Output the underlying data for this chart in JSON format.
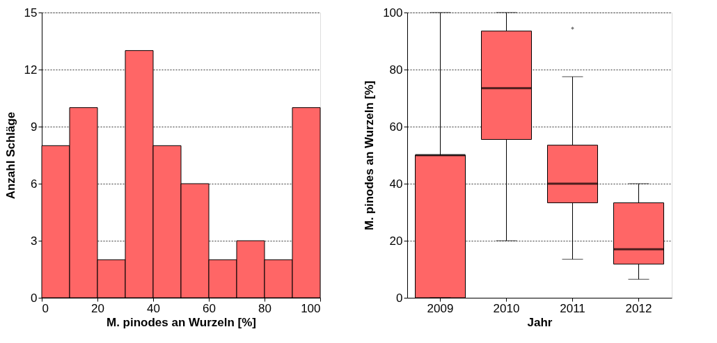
{
  "chart_data": [
    {
      "type": "histogram",
      "bins": [
        0,
        10,
        20,
        30,
        40,
        50,
        60,
        70,
        80,
        90,
        100
      ],
      "values": [
        8,
        10,
        2,
        13,
        8,
        6,
        2,
        3,
        2,
        10
      ],
      "color": "#ff6666",
      "xlabel": "M. pinodes an Wurzeln [%]",
      "ylabel": "Anzahl Schläge",
      "xlim": [
        0,
        100
      ],
      "xticks": [
        0,
        20,
        40,
        60,
        80,
        100
      ],
      "ylim": [
        0,
        15
      ],
      "yticks": [
        0,
        3,
        6,
        9,
        12,
        15
      ],
      "grid": "y"
    },
    {
      "type": "box",
      "categories": [
        "2009",
        "2010",
        "2011",
        "2012"
      ],
      "color": "#ff6666",
      "xlabel": "Jahr",
      "ylabel": "M. pinodes an Wurzeln [%]",
      "ylim": [
        0,
        100
      ],
      "yticks": [
        0,
        20,
        40,
        60,
        80,
        100
      ],
      "grid": "y",
      "boxes": [
        {
          "low": 0,
          "q1": 0,
          "median": 50,
          "q3": 50,
          "high": 100
        },
        {
          "low": 20,
          "q1": 55.5,
          "median": 73.5,
          "q3": 93.5,
          "high": 100
        },
        {
          "low": 13.5,
          "q1": 33.3,
          "median": 40,
          "q3": 53.5,
          "high": 77.5,
          "outliers": [
            94.5
          ]
        },
        {
          "low": 6.5,
          "q1": 11.8,
          "median": 17,
          "q3": 33.3,
          "high": 40
        }
      ]
    }
  ]
}
